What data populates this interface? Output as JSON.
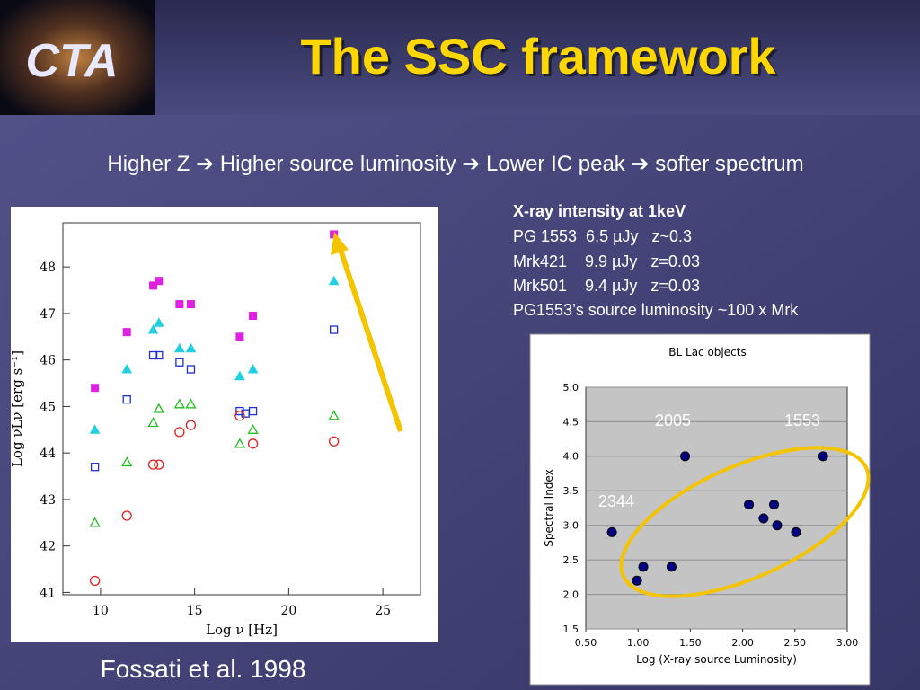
{
  "logo": "CTA",
  "title": "The SSC framework",
  "subtitle": "Higher Z ➔ Higher source luminosity ➔ Lower IC peak ➔ softer spectrum",
  "info": {
    "heading": "X-ray intensity at 1keV",
    "lines": [
      "PG 1553  6.5 µJy   z~0.3",
      "Mrk421    9.9 µJy   z=0.03",
      "Mrk501    9.4 µJy   z=0.03",
      "PG1553’s source luminosity ~100 x Mrk"
    ]
  },
  "citation": "Fossati et al. 1998",
  "chart_data": [
    {
      "type": "scatter",
      "xlabel": "Log ν  [Hz]",
      "ylabel": "Log νLν [erg s⁻¹]",
      "xlim": [
        8,
        27
      ],
      "ylim": [
        40.95,
        48.95
      ],
      "xticks": [
        10,
        15,
        20,
        25
      ],
      "yticks": [
        41,
        42,
        43,
        44,
        45,
        46,
        47,
        48
      ],
      "series": [
        {
          "color": "#e020e0",
          "marker": "square-filled",
          "x": [
            9.7,
            11.4,
            12.8,
            13.1,
            14.2,
            14.8,
            17.4,
            18.1,
            22.4
          ],
          "values": [
            45.4,
            46.6,
            47.6,
            47.7,
            47.2,
            47.2,
            46.5,
            46.95,
            48.7
          ]
        },
        {
          "color": "#20d0e0",
          "marker": "triangle-filled",
          "x": [
            9.7,
            11.4,
            12.8,
            13.1,
            14.2,
            14.8,
            17.4,
            18.1,
            22.4
          ],
          "values": [
            44.5,
            45.8,
            46.65,
            46.8,
            46.25,
            46.25,
            45.65,
            45.8,
            47.7
          ]
        },
        {
          "color": "#2030d0",
          "marker": "square-open",
          "x": [
            9.7,
            11.4,
            12.8,
            13.1,
            14.2,
            14.8,
            17.4,
            17.7,
            18.1,
            22.4
          ],
          "values": [
            43.7,
            45.15,
            46.1,
            46.1,
            45.95,
            45.8,
            44.9,
            44.85,
            44.9,
            46.65
          ]
        },
        {
          "color": "#20c020",
          "marker": "triangle-open",
          "x": [
            9.7,
            11.4,
            12.8,
            13.1,
            14.2,
            14.8,
            17.4,
            18.1,
            22.4
          ],
          "values": [
            42.5,
            43.8,
            44.65,
            44.95,
            45.05,
            45.05,
            44.2,
            44.5,
            44.8
          ]
        },
        {
          "color": "#e02020",
          "marker": "circle-open",
          "x": [
            9.7,
            11.4,
            12.8,
            13.1,
            14.2,
            14.8,
            17.4,
            18.1,
            22.4
          ],
          "values": [
            41.25,
            42.65,
            43.75,
            43.75,
            44.45,
            44.6,
            44.8,
            44.2,
            44.25
          ]
        }
      ]
    },
    {
      "type": "scatter",
      "title": "BL Lac objects",
      "xlabel": "Log (X-ray source Luminosity)",
      "ylabel": "Spectral Index",
      "xlim": [
        0.5,
        3.0
      ],
      "ylim": [
        1.5,
        5.0
      ],
      "xticks": [
        {
          "value": 0.5,
          "label": "0.50"
        },
        {
          "value": 1,
          "label": "1.00"
        },
        {
          "value": 1.5,
          "label": "1.50"
        },
        {
          "value": 2,
          "label": "2.00"
        },
        {
          "value": 2.5,
          "label": "2.50"
        },
        {
          "value": 3,
          "label": "3.00"
        }
      ],
      "yticks": [
        1.5,
        {
          "value": 2,
          "label": "2.0"
        },
        2.5,
        {
          "value": 3,
          "label": "3.0"
        },
        3.5,
        {
          "value": 4,
          "label": "4.0"
        },
        4.5,
        {
          "value": 5,
          "label": "5.0"
        }
      ],
      "grid": true,
      "series": [
        {
          "color": "#000080",
          "marker": "circle-filled",
          "x": [
            0.75,
            0.99,
            1.05,
            1.32,
            1.45,
            2.06,
            2.2,
            2.3,
            2.33,
            2.51,
            2.77
          ],
          "values": [
            2.9,
            2.2,
            2.4,
            2.4,
            4.0,
            3.3,
            3.1,
            3.3,
            3.0,
            2.9,
            4.0
          ]
        }
      ],
      "annotations": [
        "2005",
        "1553",
        "2344"
      ]
    }
  ]
}
